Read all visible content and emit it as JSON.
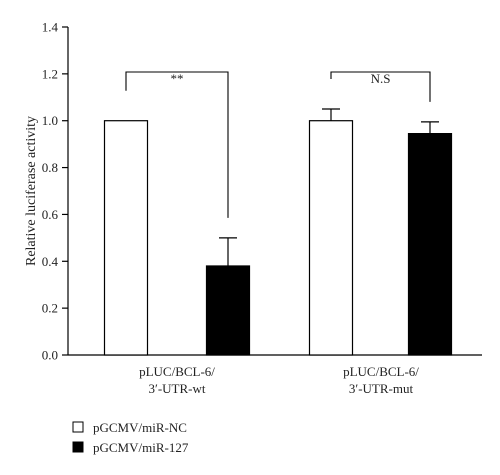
{
  "chart_data": {
    "type": "bar",
    "title": "",
    "xlabel": "",
    "ylabel": "Relative luciferase activity",
    "ylim": [
      0,
      1.4
    ],
    "yticks": [
      "0.0",
      "0.2",
      "0.4",
      "0.6",
      "0.8",
      "1.0",
      "1.2",
      "1.4"
    ],
    "categories": [
      [
        "pLUC/BCL-6/",
        "3′-UTR-wt"
      ],
      [
        "pLUC/BCL-6/",
        "3′-UTR-mut"
      ]
    ],
    "series": [
      {
        "name": "pGCMV/miR-NC",
        "values": [
          1.0,
          1.0
        ],
        "errors": [
          0,
          0.05
        ],
        "color": "#ffffff"
      },
      {
        "name": "pGCMV/miR-127",
        "values": [
          0.38,
          0.945
        ],
        "errors": [
          0.12,
          0.05
        ],
        "color": "#000000"
      }
    ],
    "significance": [
      "**",
      "N.S"
    ],
    "grid": false,
    "legend_position": "bottom-left"
  }
}
